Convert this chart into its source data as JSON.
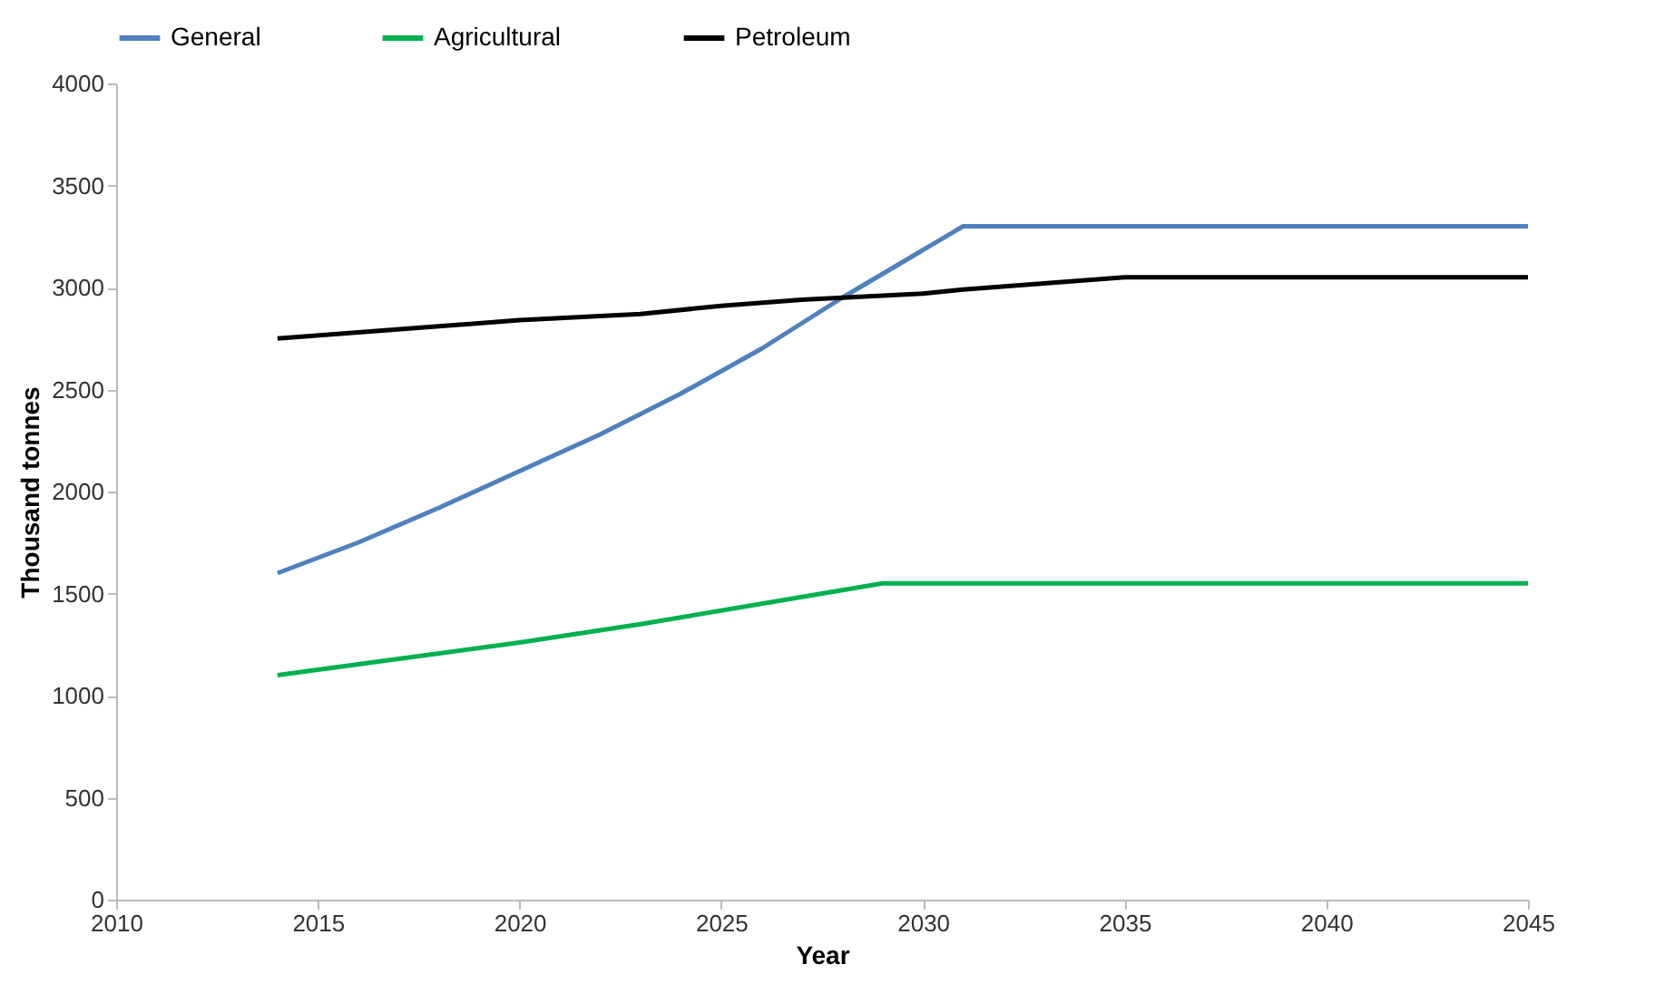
{
  "chart_data": {
    "type": "line",
    "xlabel": "Year",
    "ylabel": "Thousand tonnes",
    "xlim": [
      2010,
      2045
    ],
    "xticks": [
      2010,
      2015,
      2020,
      2025,
      2030,
      2035,
      2040,
      2045
    ],
    "ylim": [
      0,
      4000
    ],
    "yticks": [
      0,
      500,
      1000,
      1500,
      2000,
      2500,
      3000,
      3500,
      4000
    ],
    "grid": false,
    "legend": "top",
    "marker": "none",
    "line_style": "solid",
    "series": [
      {
        "name": "General",
        "color": "#4f81bd",
        "x": [
          2014,
          2016,
          2018,
          2020,
          2022,
          2024,
          2026,
          2028,
          2031,
          2045
        ],
        "values": [
          1600,
          1750,
          1920,
          2100,
          2280,
          2480,
          2700,
          2950,
          3300,
          3300
        ]
      },
      {
        "name": "Agricultural",
        "color": "#00b050",
        "x": [
          2014,
          2017,
          2020,
          2023,
          2026,
          2029,
          2045
        ],
        "values": [
          1100,
          1180,
          1260,
          1350,
          1450,
          1550,
          1550
        ]
      },
      {
        "name": "Petroleum",
        "color": "#000000",
        "x": [
          2014,
          2016,
          2018,
          2020,
          2023,
          2025,
          2027,
          2030,
          2031,
          2033,
          2035,
          2045
        ],
        "values": [
          2750,
          2780,
          2810,
          2840,
          2870,
          2910,
          2940,
          2970,
          2990,
          3020,
          3050,
          3050
        ]
      }
    ]
  }
}
